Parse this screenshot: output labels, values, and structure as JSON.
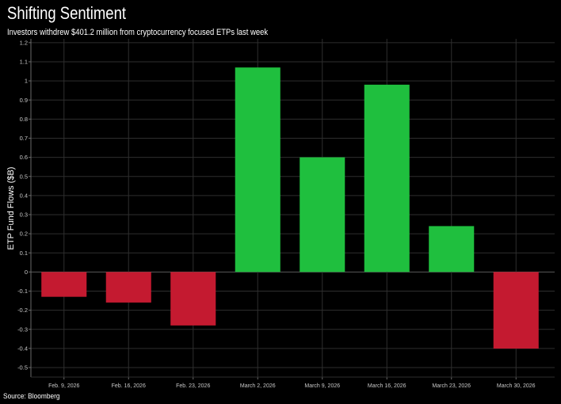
{
  "source": "Source: Bloomberg",
  "colors": {
    "background": "#000000",
    "positive": "#1fbf3e",
    "negative": "#c41a30",
    "grid": "#2e2e2e",
    "zero_line": "#5a5a5a",
    "axis": "#6a6a6a",
    "tick_text": "#c8c8c8",
    "text": "#ffffff"
  },
  "chart_data": {
    "type": "bar",
    "title": "Shifting Sentiment",
    "subtitle": "Investors withdrew $401.2 million from cryptocurrency focused ETPs last week",
    "xlabel": "",
    "ylabel": "ETP Fund Flows ($B)",
    "categories": [
      "Feb. 9, 2026",
      "Feb. 16, 2026",
      "Feb. 23, 2026",
      "March 2, 2026",
      "March 9, 2026",
      "March 16, 2026",
      "March 23, 2026",
      "March 30, 2026"
    ],
    "values": [
      -0.13,
      -0.16,
      -0.28,
      1.07,
      0.6,
      0.98,
      0.24,
      -0.401
    ],
    "ylim": [
      -0.55,
      1.22
    ],
    "yticks": [
      1.2,
      1.1,
      1,
      0.9,
      0.8,
      0.7,
      0.6,
      0.5,
      0.4,
      0.3,
      0.2,
      0.1,
      0,
      -0.1,
      -0.2,
      -0.3,
      -0.4,
      -0.5
    ],
    "grid": true
  }
}
